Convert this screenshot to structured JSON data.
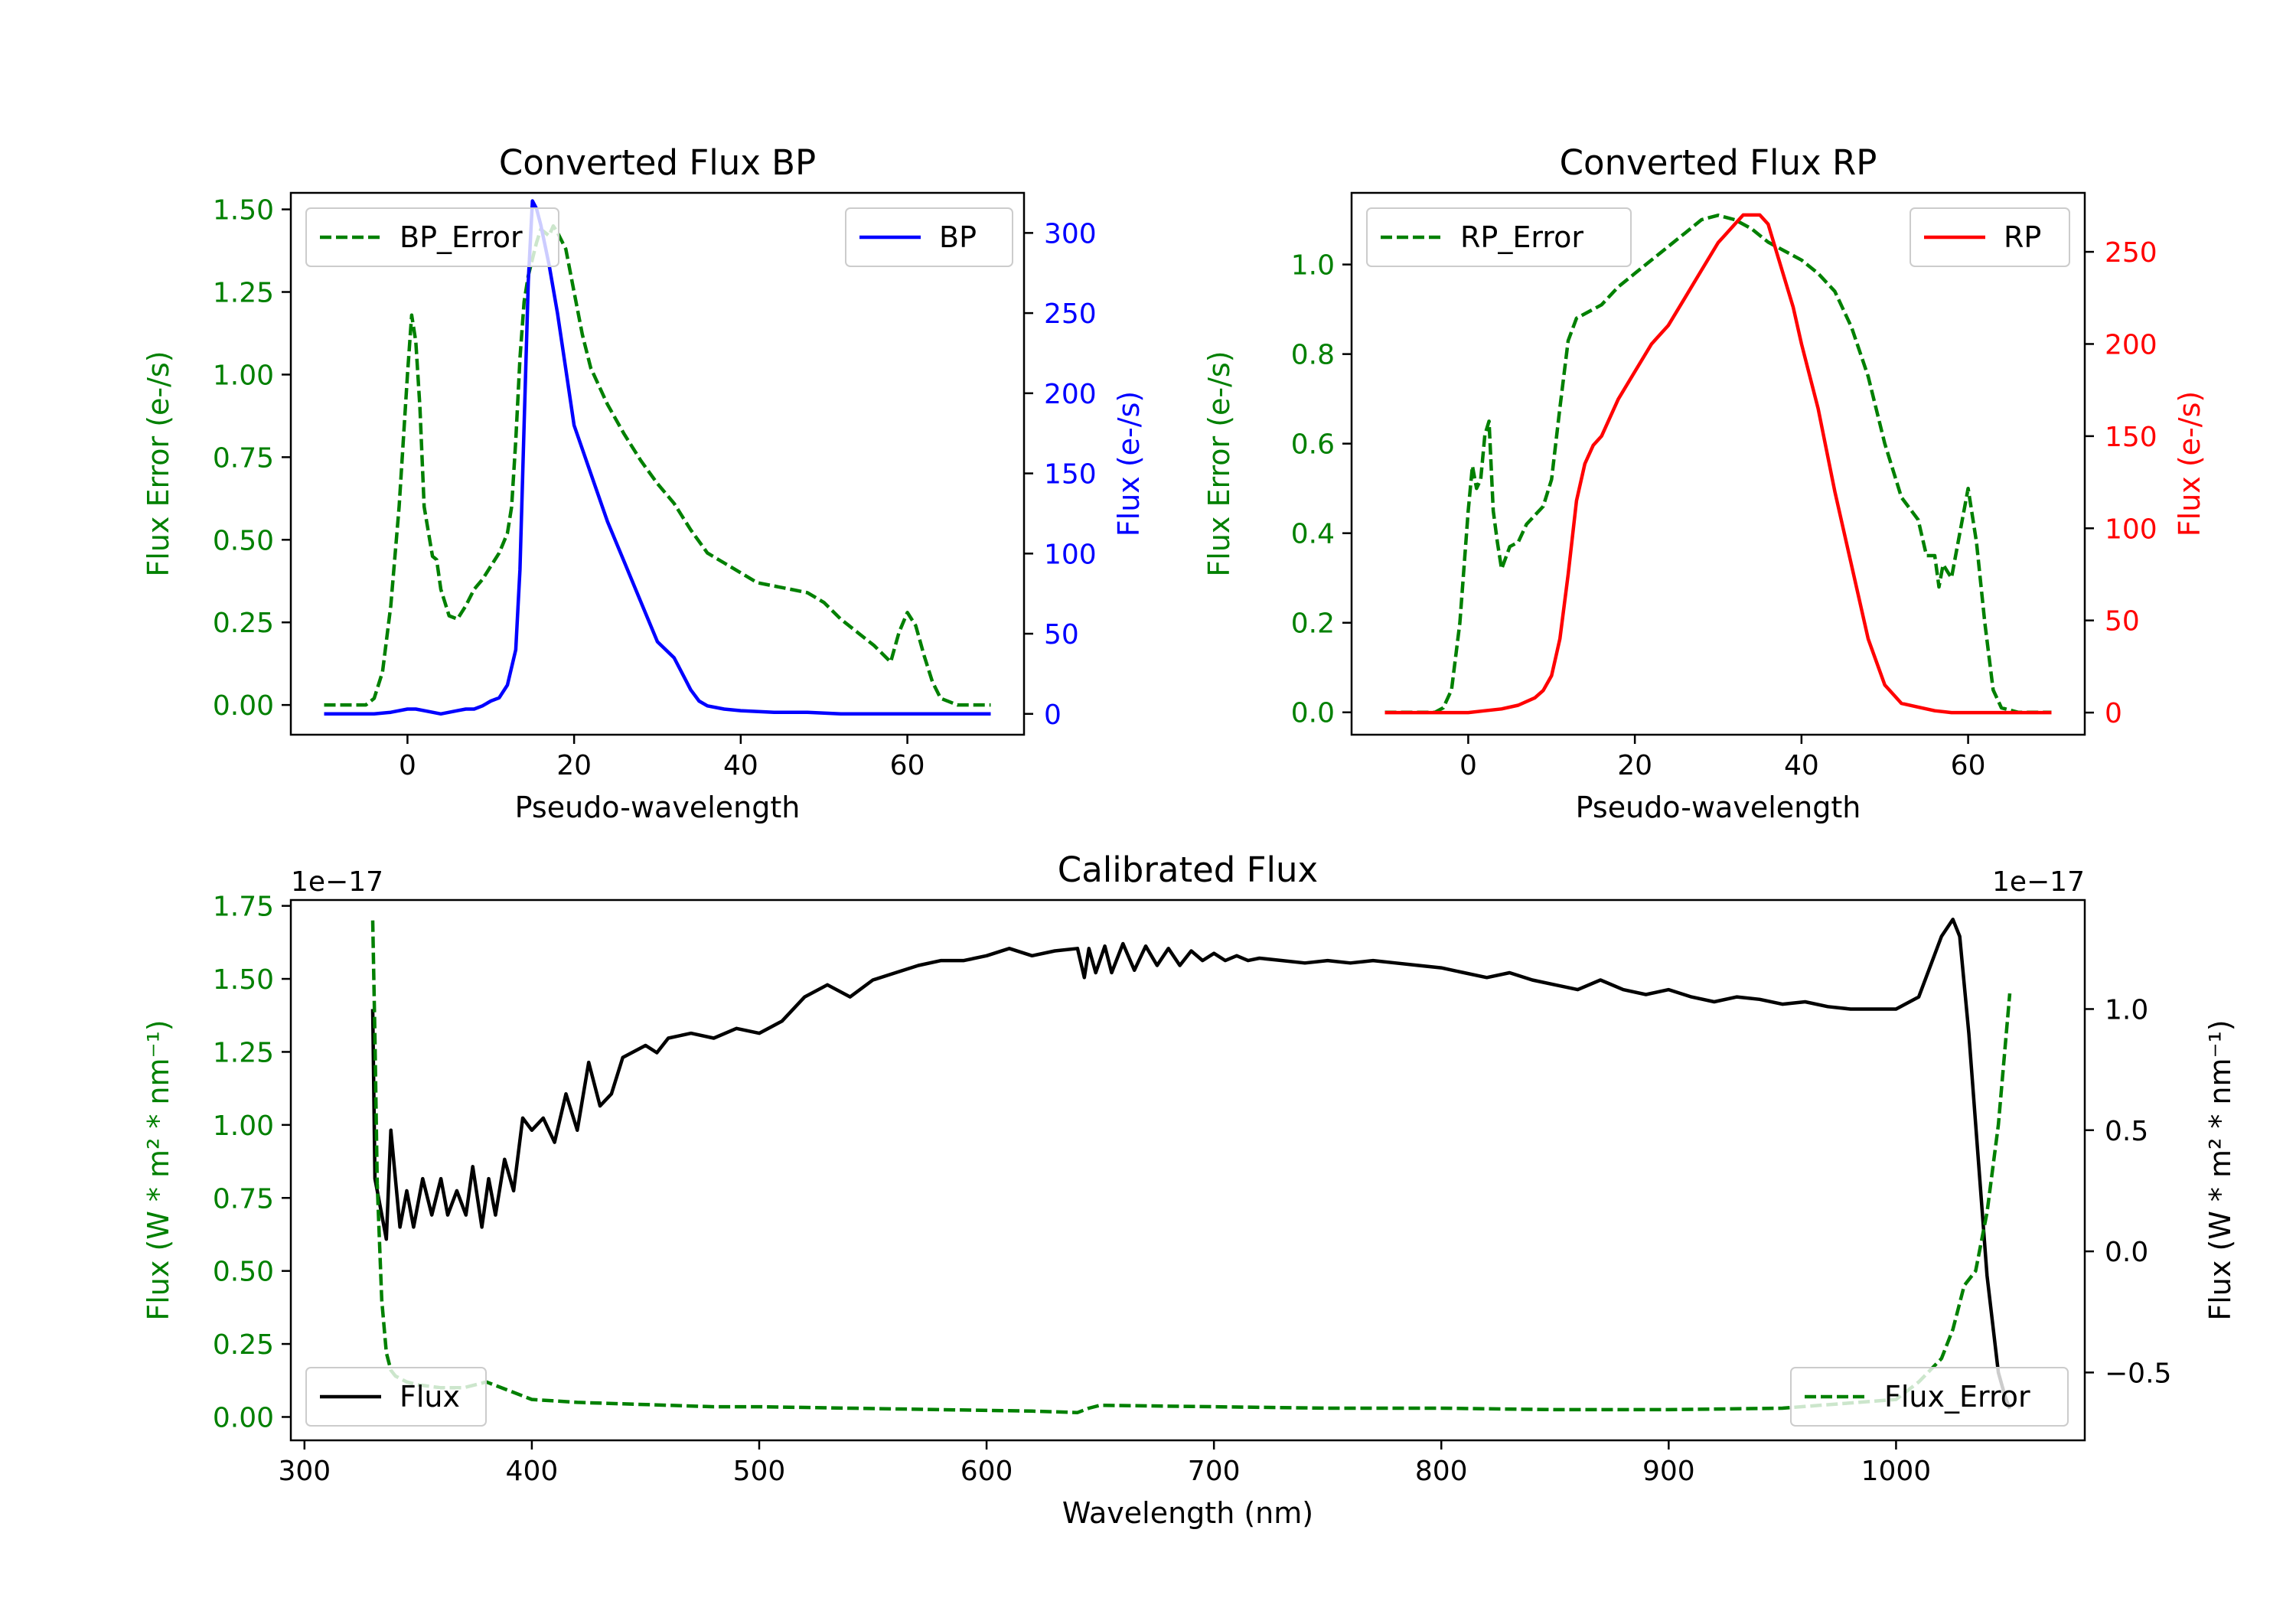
{
  "colors": {
    "green": "#008000",
    "blue": "#0000ff",
    "red": "#ff0000",
    "black": "#000000"
  },
  "chart_data": [
    {
      "type": "line",
      "title": "Converted Flux BP",
      "xlabel": "Pseudo-wavelength",
      "ylabel_left": "Flux Error (e-/s)",
      "ylabel_right": "Flux (e-/s)",
      "xlim": [
        -14,
        74
      ],
      "ylim_left": [
        -0.09,
        1.55
      ],
      "ylim_right": [
        -13,
        325
      ],
      "xticks": [
        "0",
        "20",
        "40",
        "60"
      ],
      "yticks_left": [
        "0.00",
        "0.25",
        "0.50",
        "0.75",
        "1.00",
        "1.25",
        "1.50"
      ],
      "yticks_right": [
        "0",
        "50",
        "100",
        "150",
        "200",
        "250",
        "300"
      ],
      "legend": [
        {
          "label": "BP_Error",
          "position": "top-left"
        },
        {
          "label": "BP",
          "position": "top-right"
        }
      ],
      "series": [
        {
          "name": "BP_Error",
          "axis": "left",
          "style": "dashed",
          "color": "green",
          "x": [
            -10,
            -5,
            -4,
            -3,
            -2,
            -1,
            0,
            0.5,
            1,
            1.5,
            2,
            3,
            3.5,
            4,
            5,
            6,
            7,
            8,
            9,
            10,
            11,
            12,
            12.5,
            13,
            13.5,
            14,
            14.5,
            15,
            15.5,
            16,
            17,
            17.5,
            18,
            19,
            20,
            21,
            22,
            24,
            26,
            28,
            30,
            32,
            34,
            36,
            38,
            40,
            42,
            44,
            46,
            48,
            50,
            52,
            54,
            56,
            58,
            59,
            60,
            61,
            62,
            63,
            64,
            66,
            68,
            70
          ],
          "y": [
            0,
            0,
            0.02,
            0.1,
            0.3,
            0.6,
            1.0,
            1.18,
            1.1,
            0.9,
            0.6,
            0.45,
            0.44,
            0.35,
            0.27,
            0.26,
            0.3,
            0.35,
            0.38,
            0.42,
            0.46,
            0.52,
            0.6,
            0.8,
            1.05,
            1.22,
            1.3,
            1.35,
            1.4,
            1.44,
            1.42,
            1.45,
            1.43,
            1.38,
            1.25,
            1.12,
            1.02,
            0.91,
            0.82,
            0.74,
            0.67,
            0.61,
            0.53,
            0.46,
            0.43,
            0.4,
            0.37,
            0.36,
            0.35,
            0.34,
            0.31,
            0.26,
            0.22,
            0.18,
            0.13,
            0.22,
            0.28,
            0.24,
            0.15,
            0.07,
            0.02,
            0,
            0,
            0
          ]
        },
        {
          "name": "BP",
          "axis": "right",
          "style": "solid",
          "color": "blue",
          "x": [
            -10,
            -6,
            -4,
            -2,
            0,
            1,
            2,
            3,
            4,
            5,
            6,
            7,
            8,
            9,
            10,
            11,
            12,
            13,
            13.5,
            14,
            14.5,
            15,
            15.5,
            16,
            17,
            18,
            19,
            20,
            22,
            24,
            26,
            28,
            30,
            31,
            32,
            33,
            34,
            35,
            36,
            38,
            40,
            44,
            48,
            52,
            56,
            60,
            64,
            68,
            70
          ],
          "y": [
            0,
            0,
            0,
            1,
            3,
            3,
            2,
            1,
            0,
            1,
            2,
            3,
            3,
            5,
            8,
            10,
            18,
            40,
            90,
            180,
            270,
            320,
            315,
            305,
            280,
            250,
            215,
            180,
            150,
            120,
            95,
            70,
            45,
            40,
            35,
            25,
            15,
            8,
            5,
            3,
            2,
            1,
            1,
            0,
            0,
            0,
            0,
            0,
            0
          ]
        }
      ]
    },
    {
      "type": "line",
      "title": "Converted Flux RP",
      "xlabel": "Pseudo-wavelength",
      "ylabel_left": "Flux Error (e-/s)",
      "ylabel_right": "Flux (e-/s)",
      "xlim": [
        -14,
        74
      ],
      "ylim_left": [
        -0.05,
        1.16
      ],
      "ylim_right": [
        -12,
        282
      ],
      "xticks": [
        "0",
        "20",
        "40",
        "60"
      ],
      "yticks_left": [
        "0.0",
        "0.2",
        "0.4",
        "0.6",
        "0.8",
        "1.0"
      ],
      "yticks_right": [
        "0",
        "50",
        "100",
        "150",
        "200",
        "250"
      ],
      "legend": [
        {
          "label": "RP_Error",
          "position": "top-left"
        },
        {
          "label": "RP",
          "position": "top-right"
        }
      ],
      "series": [
        {
          "name": "RP_Error",
          "axis": "left",
          "style": "dashed",
          "color": "green",
          "x": [
            -10,
            -4,
            -3,
            -2,
            -1,
            0,
            0.5,
            1,
            1.5,
            2,
            2.5,
            3,
            3.5,
            4,
            5,
            6,
            7,
            8,
            9,
            10,
            11,
            12,
            13,
            14,
            16,
            18,
            20,
            22,
            24,
            26,
            28,
            30,
            32,
            34,
            36,
            38,
            40,
            42,
            44,
            46,
            48,
            50,
            52,
            54,
            55,
            56,
            56.5,
            57,
            58,
            59,
            60,
            61,
            62,
            63,
            64,
            66,
            70
          ],
          "y": [
            0,
            0,
            0.01,
            0.05,
            0.2,
            0.45,
            0.55,
            0.5,
            0.52,
            0.62,
            0.65,
            0.45,
            0.38,
            0.32,
            0.37,
            0.38,
            0.42,
            0.44,
            0.46,
            0.52,
            0.68,
            0.83,
            0.88,
            0.89,
            0.91,
            0.95,
            0.98,
            1.01,
            1.04,
            1.07,
            1.1,
            1.11,
            1.1,
            1.08,
            1.05,
            1.03,
            1.01,
            0.98,
            0.94,
            0.86,
            0.75,
            0.6,
            0.48,
            0.43,
            0.35,
            0.35,
            0.28,
            0.33,
            0.3,
            0.4,
            0.5,
            0.38,
            0.2,
            0.05,
            0.01,
            0,
            0
          ]
        },
        {
          "name": "RP",
          "axis": "right",
          "style": "solid",
          "color": "red",
          "x": [
            -10,
            -2,
            0,
            2,
            4,
            6,
            8,
            9,
            10,
            11,
            12,
            13,
            14,
            15,
            16,
            18,
            20,
            22,
            24,
            26,
            28,
            30,
            31,
            32,
            33,
            34,
            35,
            36,
            37,
            38,
            39,
            40,
            42,
            44,
            46,
            48,
            50,
            52,
            54,
            56,
            58,
            60,
            62,
            64,
            66,
            68,
            70
          ],
          "y": [
            0,
            0,
            0,
            1,
            2,
            4,
            8,
            12,
            20,
            40,
            75,
            115,
            135,
            145,
            150,
            170,
            185,
            200,
            210,
            225,
            240,
            255,
            260,
            265,
            270,
            270,
            270,
            265,
            250,
            235,
            220,
            200,
            165,
            120,
            80,
            40,
            15,
            5,
            3,
            1,
            0,
            0,
            0,
            0,
            0,
            0,
            0
          ]
        }
      ]
    },
    {
      "type": "line",
      "title": "Calibrated Flux",
      "xlabel": "Wavelength (nm)",
      "ylabel_left": "Flux (W * m² * nm⁻¹)",
      "ylabel_right": "Flux (W * m² * nm⁻¹)",
      "offset_left": "1e−17",
      "offset_right": "1e−17",
      "xlim": [
        294,
        1083
      ],
      "ylim_left": [
        -0.08,
        1.77
      ],
      "ylim_right": [
        -0.78,
        1.45
      ],
      "xticks": [
        "300",
        "400",
        "500",
        "600",
        "700",
        "800",
        "900",
        "1000"
      ],
      "yticks_left": [
        "0.00",
        "0.25",
        "0.50",
        "0.75",
        "1.00",
        "1.25",
        "1.50",
        "1.75"
      ],
      "yticks_right": [
        "−0.5",
        "0.0",
        "0.5",
        "1.0"
      ],
      "legend": [
        {
          "label": "Flux",
          "position": "bottom-left"
        },
        {
          "label": "Flux_Error",
          "position": "bottom-right"
        }
      ],
      "series": [
        {
          "name": "Flux",
          "axis": "right",
          "style": "solid",
          "color": "black",
          "x": [
            330,
            331,
            333,
            336,
            338,
            342,
            345,
            348,
            352,
            356,
            360,
            363,
            367,
            371,
            374,
            378,
            381,
            384,
            388,
            392,
            396,
            400,
            405,
            410,
            415,
            420,
            425,
            430,
            435,
            440,
            450,
            455,
            460,
            470,
            480,
            490,
            500,
            510,
            520,
            530,
            540,
            550,
            560,
            570,
            580,
            590,
            600,
            610,
            620,
            630,
            640,
            643,
            645,
            648,
            652,
            655,
            660,
            665,
            670,
            675,
            680,
            685,
            690,
            695,
            700,
            705,
            710,
            715,
            720,
            730,
            740,
            750,
            760,
            770,
            780,
            790,
            800,
            810,
            820,
            830,
            840,
            850,
            860,
            870,
            880,
            890,
            900,
            910,
            920,
            930,
            940,
            950,
            960,
            970,
            980,
            990,
            1000,
            1010,
            1020,
            1025,
            1028,
            1032,
            1036,
            1040,
            1045,
            1048,
            1050
          ],
          "y": [
            1.0,
            0.3,
            0.2,
            0.05,
            0.5,
            0.1,
            0.25,
            0.1,
            0.3,
            0.15,
            0.3,
            0.15,
            0.25,
            0.15,
            0.35,
            0.1,
            0.3,
            0.15,
            0.38,
            0.25,
            0.55,
            0.5,
            0.55,
            0.45,
            0.65,
            0.5,
            0.78,
            0.6,
            0.65,
            0.8,
            0.85,
            0.82,
            0.88,
            0.9,
            0.88,
            0.92,
            0.9,
            0.95,
            1.05,
            1.1,
            1.05,
            1.12,
            1.15,
            1.18,
            1.2,
            1.2,
            1.22,
            1.25,
            1.22,
            1.24,
            1.25,
            1.13,
            1.25,
            1.15,
            1.26,
            1.15,
            1.27,
            1.16,
            1.26,
            1.18,
            1.25,
            1.18,
            1.24,
            1.2,
            1.23,
            1.2,
            1.22,
            1.2,
            1.21,
            1.2,
            1.19,
            1.2,
            1.19,
            1.2,
            1.19,
            1.18,
            1.17,
            1.15,
            1.13,
            1.15,
            1.12,
            1.1,
            1.08,
            1.12,
            1.08,
            1.06,
            1.08,
            1.05,
            1.03,
            1.05,
            1.04,
            1.02,
            1.03,
            1.01,
            1.0,
            1.0,
            1.0,
            1.05,
            1.3,
            1.37,
            1.3,
            0.9,
            0.4,
            -0.1,
            -0.5,
            -0.6,
            -0.65
          ]
        },
        {
          "name": "Flux_Error",
          "axis": "left",
          "style": "dashed",
          "color": "green",
          "x": [
            330,
            331,
            332,
            334,
            336,
            338,
            340,
            345,
            350,
            360,
            370,
            380,
            390,
            400,
            420,
            440,
            460,
            480,
            500,
            540,
            580,
            620,
            640,
            645,
            650,
            700,
            750,
            800,
            850,
            900,
            950,
            1000,
            1010,
            1020,
            1025,
            1030,
            1035,
            1040,
            1045,
            1050
          ],
          "y": [
            1.7,
            1.3,
            0.8,
            0.4,
            0.22,
            0.16,
            0.14,
            0.12,
            0.11,
            0.1,
            0.1,
            0.12,
            0.09,
            0.06,
            0.05,
            0.045,
            0.04,
            0.035,
            0.035,
            0.03,
            0.025,
            0.02,
            0.015,
            0.03,
            0.04,
            0.035,
            0.03,
            0.03,
            0.025,
            0.025,
            0.03,
            0.06,
            0.12,
            0.2,
            0.3,
            0.45,
            0.5,
            0.7,
            1.0,
            1.45
          ]
        }
      ]
    }
  ]
}
